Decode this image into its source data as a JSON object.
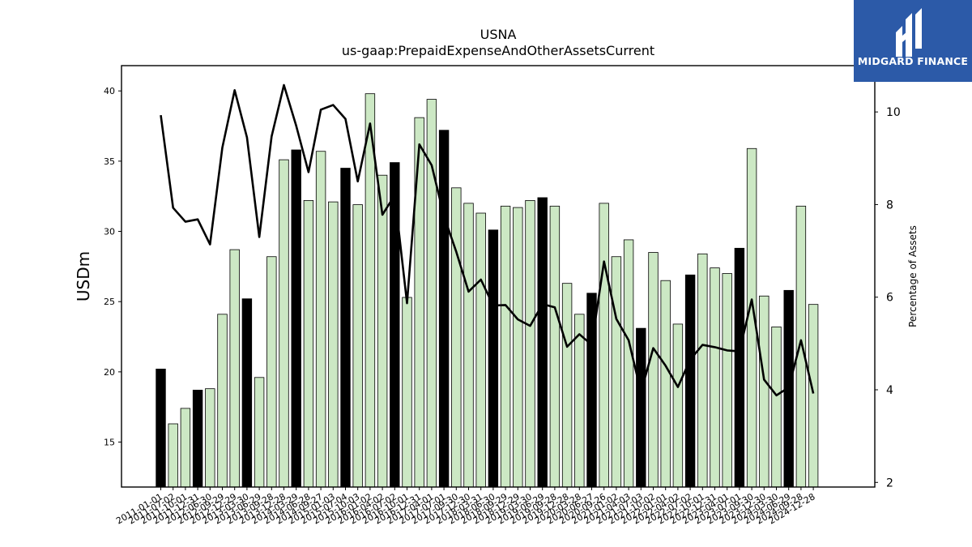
{
  "brand": {
    "name": "MIDGARD FINANCE",
    "bg_color": "#2c5aa8"
  },
  "chart_data": {
    "type": "bar",
    "title": "USNA",
    "subtitle": "us-gaap:PrepaidExpenseAndOtherAssetsCurrent",
    "ylabel": "USDm",
    "y2label": "Percentage of Assets",
    "ylim": [
      11.8,
      41.8
    ],
    "y2lim": [
      1.9,
      11.0
    ],
    "yticks": [
      15,
      20,
      25,
      30,
      35,
      40
    ],
    "y2ticks": [
      2,
      4,
      6,
      8,
      10
    ],
    "grid": false,
    "colors": {
      "bar": "#cce8c4",
      "bar_highlight": "#000000",
      "edge": "#000000",
      "line": "#000000"
    },
    "categories": [
      "2011-01-01",
      "2011-07-02",
      "2011-10-01",
      "2011-12-31",
      "2012-06-30",
      "2012-09-29",
      "2012-12-29",
      "2013-03-30",
      "2013-06-29",
      "2013-09-28",
      "2013-12-28",
      "2014-03-29",
      "2014-06-28",
      "2014-09-27",
      "2015-01-03",
      "2015-07-04",
      "2015-10-03",
      "2016-01-02",
      "2016-04-02",
      "2016-07-02",
      "2016-10-01",
      "2016-12-31",
      "2017-04-01",
      "2017-07-01",
      "2017-09-30",
      "2017-12-30",
      "2018-03-31",
      "2018-06-30",
      "2018-09-29",
      "2018-12-29",
      "2019-03-30",
      "2019-06-29",
      "2019-09-28",
      "2019-12-28",
      "2020-03-28",
      "2020-06-27",
      "2020-09-26",
      "2021-01-02",
      "2021-04-03",
      "2021-07-03",
      "2021-10-02",
      "2022-01-01",
      "2022-04-02",
      "2022-07-02",
      "2022-10-01",
      "2022-12-31",
      "2023-04-01",
      "2023-07-01",
      "2023-09-30",
      "2023-12-30",
      "2024-03-30",
      "2024-06-29",
      "2024-09-28",
      "2024-12-28"
    ],
    "values": [
      20.2,
      16.3,
      17.4,
      18.7,
      18.8,
      24.1,
      28.7,
      25.2,
      19.6,
      28.2,
      35.1,
      35.8,
      32.2,
      35.7,
      32.1,
      34.5,
      31.9,
      39.8,
      34.0,
      34.9,
      25.3,
      38.1,
      39.4,
      37.2,
      33.1,
      32.0,
      31.3,
      30.1,
      31.8,
      31.7,
      32.2,
      32.4,
      31.8,
      26.3,
      24.1,
      25.6,
      32.0,
      28.2,
      29.4,
      23.1,
      28.5,
      26.5,
      23.4,
      26.9,
      28.4,
      27.4,
      27.0,
      28.8,
      35.9,
      25.4,
      23.2,
      25.8,
      31.8,
      24.8
    ],
    "highlighted": [
      true,
      false,
      false,
      true,
      false,
      false,
      false,
      true,
      false,
      false,
      false,
      true,
      false,
      false,
      false,
      true,
      false,
      false,
      false,
      true,
      false,
      false,
      false,
      true,
      false,
      false,
      false,
      true,
      false,
      false,
      false,
      true,
      false,
      false,
      false,
      true,
      false,
      false,
      false,
      true,
      false,
      false,
      false,
      true,
      false,
      false,
      false,
      true,
      false,
      false,
      false,
      true,
      false,
      false
    ],
    "line_values": [
      9.93,
      7.93,
      7.63,
      7.68,
      7.14,
      9.23,
      10.47,
      9.45,
      7.3,
      9.47,
      10.58,
      9.7,
      8.7,
      10.05,
      10.15,
      9.85,
      8.5,
      9.75,
      7.78,
      8.2,
      5.87,
      9.3,
      8.85,
      7.75,
      6.98,
      6.12,
      6.38,
      5.82,
      5.83,
      5.52,
      5.38,
      5.85,
      5.78,
      4.93,
      5.2,
      4.97,
      6.77,
      5.53,
      5.07,
      3.95,
      4.9,
      4.52,
      4.06,
      4.65,
      4.97,
      4.92,
      4.85,
      4.83,
      5.95,
      4.22,
      3.88,
      4.05,
      5.07,
      3.92
    ],
    "series": [
      {
        "name": "",
        "axis": "left",
        "kind": "bar"
      },
      {
        "name": "",
        "axis": "right",
        "kind": "line"
      }
    ]
  }
}
